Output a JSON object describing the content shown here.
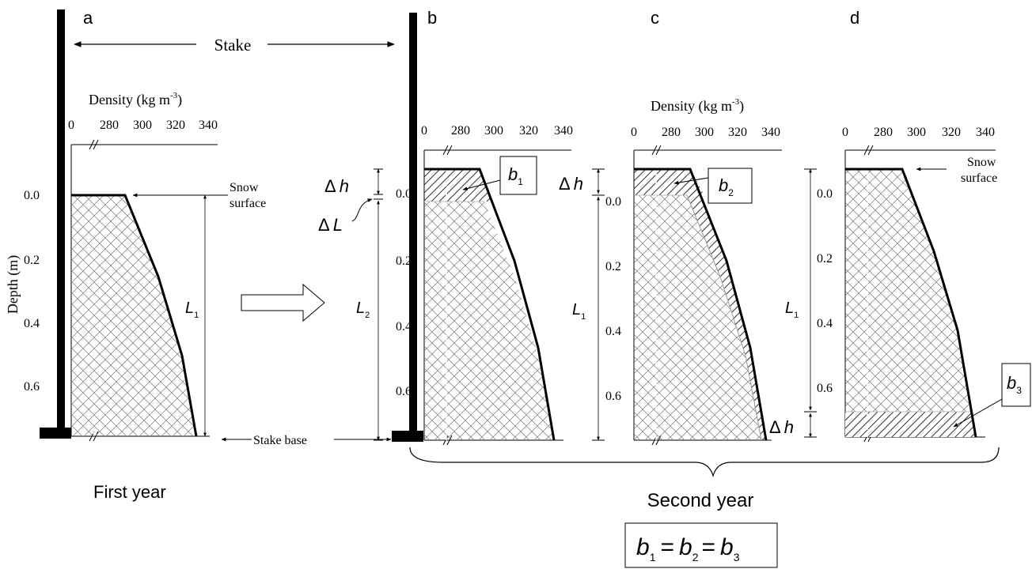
{
  "panels": {
    "a": {
      "letter": "a",
      "snow_surface": [
        "Snow",
        "surface"
      ],
      "L": "L",
      "L_sub": "1"
    },
    "b": {
      "letter": "b",
      "dh_delta": "Δ",
      "dh_var": "h",
      "dL_delta": "Δ",
      "dL_var": "L",
      "L": "L",
      "L_sub": "2",
      "b": "b",
      "b_sub": "1"
    },
    "c": {
      "letter": "c",
      "dh_delta": "Δ",
      "dh_var": "h",
      "L": "L",
      "L_sub": "1",
      "b": "b",
      "b_sub": "2"
    },
    "d": {
      "letter": "d",
      "snow_surface": [
        "Snow",
        "surface"
      ],
      "dh_delta": "Δ",
      "dh_var": "h",
      "L": "L",
      "L_sub": "1",
      "b": "b",
      "b_sub": "3"
    }
  },
  "stake_label": "Stake",
  "stake_base_label": "Stake base",
  "density_label": {
    "text": "Density (kg m",
    "sup": "-3",
    "close": ")"
  },
  "density_ticks": [
    "0",
    "280",
    "300",
    "320",
    "340"
  ],
  "depth_label": "Depth (m)",
  "depth_ticks": [
    "0.0",
    "0.2",
    "0.4",
    "0.6"
  ],
  "first_year": "First year",
  "second_year": "Second year",
  "equation": {
    "b": "b",
    "sub1": "1",
    "sub2": "2",
    "sub3": "3",
    "eq": "="
  }
}
